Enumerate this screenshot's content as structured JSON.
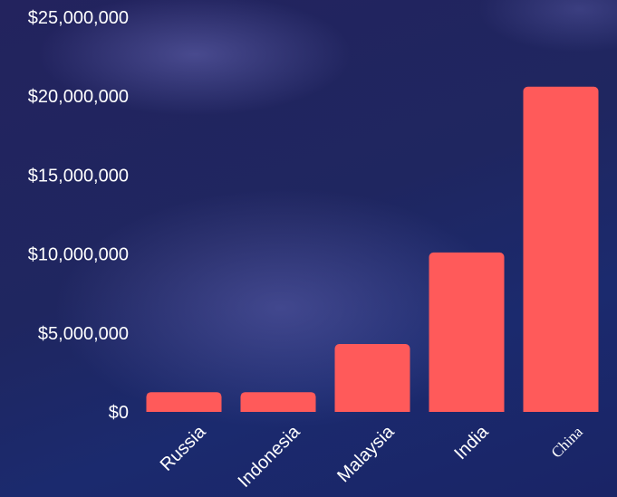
{
  "chart_data": {
    "type": "bar",
    "categories": [
      "Russia",
      "Indonesia",
      "Malaysia",
      "India",
      "China"
    ],
    "values": [
      1250000,
      1250000,
      4300000,
      10100000,
      20600000
    ],
    "ylim": [
      0,
      25000000
    ],
    "yticks": [
      0,
      5000000,
      10000000,
      15000000,
      20000000,
      25000000
    ],
    "ytick_labels": [
      "$0",
      "$5,000,000",
      "$10,000,000",
      "$15,000,000",
      "$20,000,000",
      "$25,000,000"
    ],
    "bar_color": "#ff5a5a",
    "grid": false,
    "legend": "none"
  }
}
